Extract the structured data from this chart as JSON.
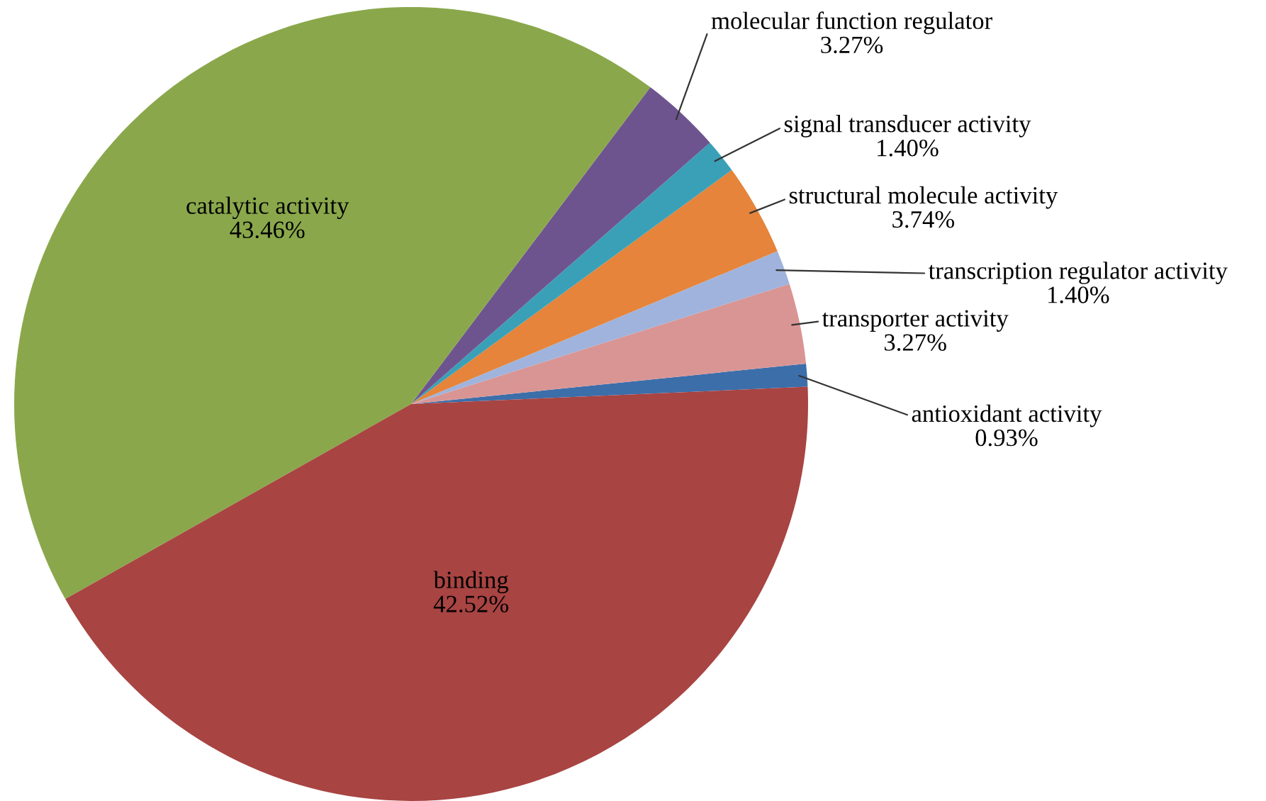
{
  "chart_data": {
    "type": "pie",
    "categories": [
      "antioxidant activity",
      "transporter activity",
      "transcription regulator activity",
      "structural molecule activity",
      "signal transducer activity",
      "molecular function regulator",
      "catalytic activity",
      "binding"
    ],
    "values": [
      0.93,
      3.27,
      1.4,
      3.74,
      1.4,
      3.27,
      43.46,
      42.52
    ],
    "colors": [
      "#3c6eaa",
      "#d99594",
      "#9fb3dc",
      "#e5843a",
      "#3aa0b8",
      "#6e548e",
      "#8aa84b",
      "#a84442"
    ],
    "value_labels": [
      "0.93%",
      "3.27%",
      "1.40%",
      "3.74%",
      "1.40%",
      "3.27%",
      "43.46%",
      "42.52%"
    ],
    "legend": false
  }
}
